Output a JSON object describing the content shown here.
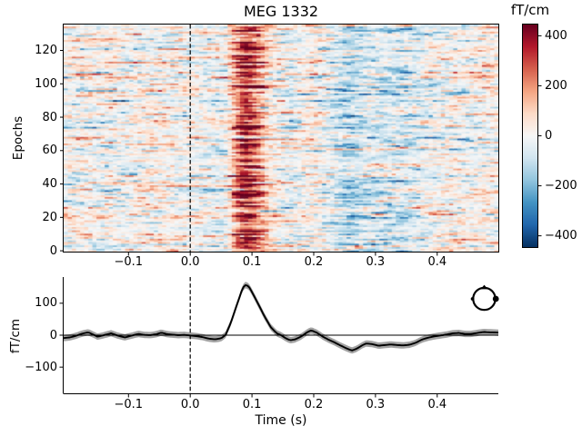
{
  "figure": {
    "title": "MEG 1332",
    "background": "#ffffff"
  },
  "chart_data": [
    {
      "type": "heatmap",
      "title": "MEG 1332",
      "ylabel": "Epochs",
      "colorbar_label": "fT/cm",
      "colormap": "RdBu_r",
      "colormap_colors": [
        "#053061",
        "#2166ac",
        "#4393c3",
        "#92c5de",
        "#d1e5f0",
        "#f7f7f7",
        "#fddbc7",
        "#f4a582",
        "#d6604d",
        "#b2182b",
        "#67001f"
      ],
      "clim": [
        -445,
        445
      ],
      "colorbar_ticks": [
        400,
        200,
        0,
        -200,
        -400
      ],
      "colorbar_tick_labels": [
        "400",
        "200",
        "0",
        "−200",
        "−400"
      ],
      "n_epochs": 136,
      "n_times": 106,
      "x_range": [
        -0.205,
        0.499
      ],
      "y_range": [
        0,
        136
      ],
      "xticks": [
        -0.1,
        0.0,
        0.1,
        0.2,
        0.3,
        0.4
      ],
      "xtick_labels": [
        "−0.1",
        "0.0",
        "0.1",
        "0.2",
        "0.3",
        "0.4"
      ],
      "yticks": [
        0,
        20,
        40,
        60,
        80,
        100,
        120
      ],
      "ytick_labels": [
        "0",
        "20",
        "40",
        "60",
        "80",
        "100",
        "120"
      ],
      "vline_time": 0.0,
      "content_description": "Single-trial MEG gradiometer epochs stacked vertically; horizontally-smeared random noise with a strong positive (red) response band around 0.06-0.14 s present across all epochs, peaking near +450 fT/cm; weak negative (blue) tendency around 0.2-0.36 s.",
      "noise_model": {
        "seed": 42,
        "std": 80,
        "ar_coeff": 0.72,
        "row_amp_min": 0.65,
        "row_amp_max": 1.55,
        "row_gain_mean": 1.0,
        "row_gain_sd": 0.4,
        "evoked_gain": 2.3
      }
    },
    {
      "type": "line",
      "name": "evoked-average",
      "xlabel": "Time (s)",
      "ylabel": "fT/cm",
      "xlim": [
        -0.205,
        0.499
      ],
      "ylim": [
        -182,
        182
      ],
      "xticks": [
        -0.1,
        0.0,
        0.1,
        0.2,
        0.3,
        0.4
      ],
      "xtick_labels": [
        "−0.1",
        "0.0",
        "0.1",
        "0.2",
        "0.3",
        "0.4"
      ],
      "yticks": [
        100,
        0,
        -100
      ],
      "ytick_labels": [
        "100",
        "0",
        "−100"
      ],
      "vline_time": 0.0,
      "hline_value": 0,
      "line_color": "#000000",
      "ci_color": "#a3a3a3",
      "ci_halfwidth": 10,
      "inset": "head outline with sensor-position dot, top right",
      "series": [
        {
          "name": "MEG 1332 mean across epochs (fT/cm)",
          "points": [
            [
              -0.205,
              -9
            ],
            [
              -0.195,
              -7
            ],
            [
              -0.185,
              -2
            ],
            [
              -0.175,
              5
            ],
            [
              -0.165,
              9
            ],
            [
              -0.155,
              0
            ],
            [
              -0.15,
              -5
            ],
            [
              -0.14,
              0
            ],
            [
              -0.128,
              6
            ],
            [
              -0.118,
              -1
            ],
            [
              -0.106,
              -7
            ],
            [
              -0.096,
              -2
            ],
            [
              -0.084,
              4
            ],
            [
              -0.075,
              1
            ],
            [
              -0.065,
              0
            ],
            [
              -0.055,
              3
            ],
            [
              -0.047,
              8
            ],
            [
              -0.037,
              3
            ],
            [
              -0.03,
              2
            ],
            [
              -0.02,
              0
            ],
            [
              -0.01,
              1
            ],
            [
              0.0,
              -1
            ],
            [
              0.01,
              -3
            ],
            [
              0.02,
              -6
            ],
            [
              0.03,
              -11
            ],
            [
              0.04,
              -13
            ],
            [
              0.05,
              -10
            ],
            [
              0.057,
              0
            ],
            [
              0.065,
              35
            ],
            [
              0.072,
              75
            ],
            [
              0.08,
              120
            ],
            [
              0.085,
              148
            ],
            [
              0.09,
              158
            ],
            [
              0.095,
              152
            ],
            [
              0.1,
              135
            ],
            [
              0.11,
              98
            ],
            [
              0.12,
              60
            ],
            [
              0.13,
              26
            ],
            [
              0.14,
              6
            ],
            [
              0.147,
              0
            ],
            [
              0.155,
              -10
            ],
            [
              0.162,
              -16
            ],
            [
              0.17,
              -13
            ],
            [
              0.18,
              -4
            ],
            [
              0.19,
              10
            ],
            [
              0.196,
              15
            ],
            [
              0.205,
              8
            ],
            [
              0.215,
              -5
            ],
            [
              0.225,
              -15
            ],
            [
              0.235,
              -24
            ],
            [
              0.245,
              -34
            ],
            [
              0.255,
              -43
            ],
            [
              0.262,
              -48
            ],
            [
              0.27,
              -42
            ],
            [
              0.28,
              -30
            ],
            [
              0.285,
              -26
            ],
            [
              0.295,
              -28
            ],
            [
              0.305,
              -33
            ],
            [
              0.315,
              -31
            ],
            [
              0.325,
              -29
            ],
            [
              0.335,
              -31
            ],
            [
              0.345,
              -32
            ],
            [
              0.355,
              -30
            ],
            [
              0.365,
              -24
            ],
            [
              0.375,
              -14
            ],
            [
              0.385,
              -8
            ],
            [
              0.395,
              -4
            ],
            [
              0.405,
              -1
            ],
            [
              0.415,
              2
            ],
            [
              0.425,
              6
            ],
            [
              0.435,
              7
            ],
            [
              0.445,
              4
            ],
            [
              0.455,
              4
            ],
            [
              0.465,
              7
            ],
            [
              0.475,
              10
            ],
            [
              0.485,
              9
            ],
            [
              0.499,
              8
            ]
          ]
        }
      ]
    }
  ]
}
